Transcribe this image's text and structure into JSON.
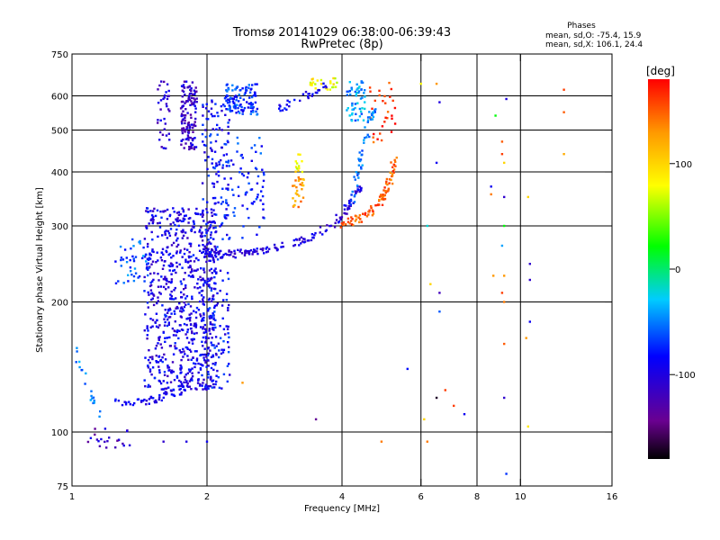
{
  "chart_data": {
    "type": "scatter",
    "title": "Tromsø 20141029 06:38:00-06:39:43",
    "subtitle": "RwPretec (8p)",
    "stats": {
      "heading": "Phases",
      "line1": "mean, sd,O: -75.4, 15.9",
      "line2": "mean, sd,X: 106.1, 24.4"
    },
    "xlabel": "Frequency [MHz]",
    "ylabel": "Stationary phase Virtual Height [km]",
    "x_scale": "log",
    "y_scale": "log",
    "xlim": [
      1,
      16
    ],
    "ylim": [
      75,
      750
    ],
    "xticks": [
      1,
      2,
      4,
      6,
      8,
      10,
      16
    ],
    "xtick_labels": [
      "1",
      "2",
      "4",
      "6",
      "8",
      "10",
      "16"
    ],
    "yticks": [
      75,
      100,
      200,
      300,
      400,
      500,
      600,
      750
    ],
    "ytick_labels": [
      "75",
      "100",
      "200",
      "300",
      "400",
      "500",
      "600",
      "750"
    ],
    "grid_x": [
      2,
      4,
      6,
      8,
      10
    ],
    "grid_y": [
      100,
      200,
      300,
      400,
      500,
      600
    ],
    "grid": true,
    "colorbar": {
      "label": "[deg]",
      "range": [
        -180,
        180
      ],
      "ticks": [
        100,
        0,
        -100
      ],
      "tick_labels": [
        "100",
        "0",
        "-100"
      ]
    },
    "series": [
      {
        "traces": [
          {
            "x": [
              1.95,
              2.1,
              2.3,
              2.6,
              3.0,
              3.4,
              3.8,
              4.1,
              4.4
            ],
            "y": [
              262,
              258,
              258,
              262,
              270,
              282,
              300,
              330,
              370
            ],
            "phase": -100,
            "n": 160
          },
          {
            "x": [
              1.25,
              1.35,
              1.45,
              1.55,
              1.65,
              1.75,
              1.8,
              1.85
            ],
            "y": [
              118,
              117,
              118,
              120,
              122,
              125,
              130,
              140
            ],
            "phase": -95,
            "n": 70
          },
          {
            "x": [
              4.0,
              4.3,
              4.6,
              4.8,
              5.0,
              5.15,
              5.25
            ],
            "y": [
              303,
              310,
              320,
              335,
              360,
              390,
              430
            ],
            "phase": 150,
            "n": 90
          },
          {
            "x": [
              4.2,
              4.35,
              4.5,
              4.6,
              4.7
            ],
            "y": [
              340,
              400,
              460,
              520,
              560
            ],
            "phase": -50,
            "n": 50
          },
          {
            "x": [
              2.9,
              3.1,
              3.3,
              3.5,
              3.7
            ],
            "y": [
              560,
              580,
              600,
              620,
              640
            ],
            "phase": -90,
            "n": 30
          },
          {
            "x": [
              1.0,
              1.05,
              1.1,
              1.15,
              1.2
            ],
            "y": [
              160,
              140,
              120,
              110,
              100
            ],
            "phase": -50,
            "n": 20
          }
        ]
      },
      {
        "clouds": [
          {
            "x": [
              1.45,
              2.1
            ],
            "y": [
              125,
              330
            ],
            "phase": -95,
            "n": 700
          },
          {
            "x": [
              1.95,
              2.25
            ],
            "y": [
              125,
              600
            ],
            "phase": -85,
            "n": 260
          },
          {
            "x": [
              1.75,
              1.9
            ],
            "y": [
              450,
              650
            ],
            "phase": -110,
            "n": 130
          },
          {
            "x": [
              2.2,
              2.6
            ],
            "y": [
              540,
              640
            ],
            "phase": -70,
            "n": 110
          },
          {
            "x": [
              1.25,
              1.5
            ],
            "y": [
              220,
              280
            ],
            "phase": -60,
            "n": 45
          },
          {
            "x": [
              2.2,
              2.7
            ],
            "y": [
              280,
              480
            ],
            "phase": -75,
            "n": 70
          },
          {
            "x": [
              1.55,
              1.65
            ],
            "y": [
              450,
              650
            ],
            "phase": -105,
            "n": 35
          },
          {
            "x": [
              4.1,
              4.5
            ],
            "y": [
              520,
              650
            ],
            "phase": -45,
            "n": 55
          },
          {
            "x": [
              3.1,
              3.3
            ],
            "y": [
              330,
              390
            ],
            "phase": 130,
            "n": 28
          },
          {
            "x": [
              3.15,
              3.3
            ],
            "y": [
              400,
              440
            ],
            "phase": 85,
            "n": 12
          },
          {
            "x": [
              3.4,
              3.9
            ],
            "y": [
              620,
              660
            ],
            "phase": 80,
            "n": 25
          },
          {
            "x": [
              4.6,
              5.3
            ],
            "y": [
              460,
              650
            ],
            "phase": 160,
            "n": 30
          },
          {
            "x": [
              1.05,
              1.35
            ],
            "y": [
              90,
              102
            ],
            "phase": -115,
            "n": 22
          }
        ]
      },
      {
        "isolated": [
          {
            "x": 9.3,
            "y": 590,
            "phase": -100
          },
          {
            "x": 9.1,
            "y": 470,
            "phase": 150
          },
          {
            "x": 9.1,
            "y": 440,
            "phase": 160
          },
          {
            "x": 9.2,
            "y": 420,
            "phase": 100
          },
          {
            "x": 9.2,
            "y": 350,
            "phase": -110
          },
          {
            "x": 8.6,
            "y": 370,
            "phase": -90
          },
          {
            "x": 8.6,
            "y": 355,
            "phase": 140
          },
          {
            "x": 9.2,
            "y": 300,
            "phase": 20
          },
          {
            "x": 9.1,
            "y": 270,
            "phase": -40
          },
          {
            "x": 9.2,
            "y": 230,
            "phase": 130
          },
          {
            "x": 9.1,
            "y": 210,
            "phase": 160
          },
          {
            "x": 9.2,
            "y": 200,
            "phase": 140
          },
          {
            "x": 9.2,
            "y": 160,
            "phase": 150
          },
          {
            "x": 8.7,
            "y": 230,
            "phase": 130
          },
          {
            "x": 10.5,
            "y": 245,
            "phase": -110
          },
          {
            "x": 10.5,
            "y": 225,
            "phase": -110
          },
          {
            "x": 10.5,
            "y": 180,
            "phase": -90
          },
          {
            "x": 10.3,
            "y": 165,
            "phase": 130
          },
          {
            "x": 12.5,
            "y": 620,
            "phase": 160
          },
          {
            "x": 12.5,
            "y": 440,
            "phase": 120
          },
          {
            "x": 12.5,
            "y": 550,
            "phase": 150
          },
          {
            "x": 10.4,
            "y": 350,
            "phase": 100
          },
          {
            "x": 8.8,
            "y": 540,
            "phase": 20
          },
          {
            "x": 6.2,
            "y": 300,
            "phase": -20
          },
          {
            "x": 6.3,
            "y": 220,
            "phase": 100
          },
          {
            "x": 6.6,
            "y": 210,
            "phase": -120
          },
          {
            "x": 6.6,
            "y": 190,
            "phase": -60
          },
          {
            "x": 6.5,
            "y": 120,
            "phase": -170
          },
          {
            "x": 6.8,
            "y": 125,
            "phase": 160
          },
          {
            "x": 7.1,
            "y": 115,
            "phase": 160
          },
          {
            "x": 7.5,
            "y": 110,
            "phase": -90
          },
          {
            "x": 6.1,
            "y": 107,
            "phase": 100
          },
          {
            "x": 6.2,
            "y": 95,
            "phase": 140
          },
          {
            "x": 9.3,
            "y": 80,
            "phase": -70
          },
          {
            "x": 10.4,
            "y": 103,
            "phase": 90
          },
          {
            "x": 9.2,
            "y": 120,
            "phase": -110
          },
          {
            "x": 5.6,
            "y": 140,
            "phase": -80
          },
          {
            "x": 6.5,
            "y": 420,
            "phase": -90
          },
          {
            "x": 4.9,
            "y": 95,
            "phase": 140
          },
          {
            "x": 3.5,
            "y": 107,
            "phase": -140
          },
          {
            "x": 2.0,
            "y": 95,
            "phase": -90
          },
          {
            "x": 1.8,
            "y": 95,
            "phase": -100
          },
          {
            "x": 1.6,
            "y": 95,
            "phase": -110
          },
          {
            "x": 2.4,
            "y": 130,
            "phase": 130
          },
          {
            "x": 6.0,
            "y": 640,
            "phase": 80
          },
          {
            "x": 6.6,
            "y": 580,
            "phase": -100
          },
          {
            "x": 6.5,
            "y": 640,
            "phase": 130
          }
        ]
      }
    ]
  }
}
